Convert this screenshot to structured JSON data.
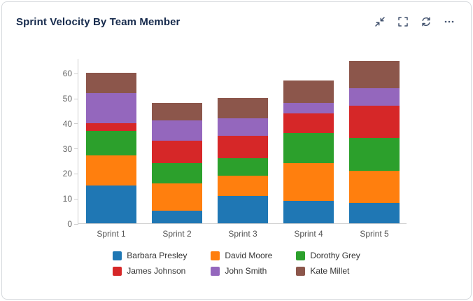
{
  "header": {
    "title": "Sprint Velocity By Team Member",
    "icons": [
      "collapse-icon",
      "fullscreen-icon",
      "refresh-icon",
      "more-icon"
    ]
  },
  "colors": {
    "title_text": "#172b4d",
    "icon": "#42526e",
    "axis_line": "#cfcfcf",
    "tick_text": "#666666",
    "legend_text": "#333333",
    "card_border": "#d5d8dc"
  },
  "chart_data": {
    "type": "bar",
    "stacked": true,
    "title": "Sprint Velocity By Team Member",
    "xlabel": "",
    "ylabel": "",
    "categories": [
      "Sprint 1",
      "Sprint 2",
      "Sprint 3",
      "Sprint 4",
      "Sprint 5"
    ],
    "series": [
      {
        "name": "Barbara Presley",
        "color": "#1f77b4",
        "values": [
          15,
          5,
          11,
          9,
          8
        ]
      },
      {
        "name": "David Moore",
        "color": "#ff7f0e",
        "values": [
          12,
          11,
          8,
          15,
          13
        ]
      },
      {
        "name": "Dorothy Grey",
        "color": "#2ca02c",
        "values": [
          10,
          8,
          7,
          12,
          13
        ]
      },
      {
        "name": "James Johnson",
        "color": "#d62728",
        "values": [
          3,
          9,
          9,
          8,
          13
        ]
      },
      {
        "name": "John Smith",
        "color": "#9467bd",
        "values": [
          12,
          8,
          7,
          4,
          7
        ]
      },
      {
        "name": "Kate Millet",
        "color": "#8c564b",
        "values": [
          8,
          7,
          8,
          9,
          11
        ]
      }
    ],
    "totals": [
      60,
      48,
      50,
      57,
      65
    ],
    "ylim": [
      0,
      66
    ],
    "yticks": [
      0,
      10,
      20,
      30,
      40,
      50,
      60
    ],
    "grid": false,
    "legend_position": "bottom"
  }
}
